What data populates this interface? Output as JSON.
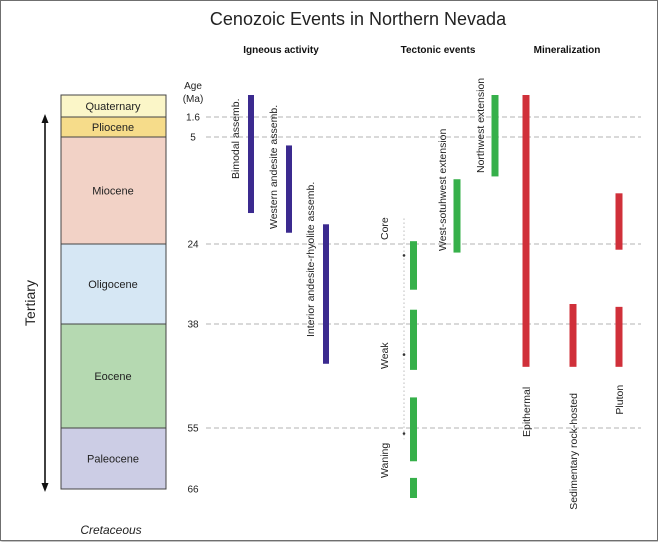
{
  "title": "Cenozoic  Events in Northern Nevada",
  "headers": {
    "igneous": "Igneous activity",
    "tectonic": "Tectonic events",
    "mineral": "Mineralization"
  },
  "axis": {
    "age_label_1": "Age",
    "age_label_2": "(Ma)"
  },
  "epochs": [
    {
      "name": "Quaternary",
      "start": 0,
      "end": 1.6,
      "color": "#fbf6c8"
    },
    {
      "name": "Pliocene",
      "start": 1.6,
      "end": 5,
      "color": "#f6dc8a"
    },
    {
      "name": "Miocene",
      "start": 5,
      "end": 24,
      "color": "#f2d2c6"
    },
    {
      "name": "Oligocene",
      "start": 24,
      "end": 38,
      "color": "#d6e7f4"
    },
    {
      "name": "Eocene",
      "start": 38,
      "end": 55,
      "color": "#b5d9b1"
    },
    {
      "name": "Paleocene",
      "start": 55,
      "end": 66,
      "color": "#cccde5"
    }
  ],
  "age_ticks": [
    "1.6",
    "5",
    "24",
    "38",
    "55",
    "66"
  ],
  "tertiary_label": "Tertiary",
  "cretaceous_label": "Cretaceous",
  "igneous": [
    {
      "label": "Bimodal assemb.",
      "start": 0,
      "end": 18.5,
      "color": "#3b2a8f"
    },
    {
      "label": "Western andesite assemb.",
      "start": 6.5,
      "end": 22,
      "color": "#3b2a8f"
    },
    {
      "label": "Interior andesite-rhyolite assemb.",
      "start": 20.5,
      "end": 44.5,
      "color": "#3b2a8f"
    }
  ],
  "tectonic_phases": [
    {
      "label": "Core",
      "start": 23,
      "end": 32
    },
    {
      "label": "Weak",
      "start": 34.5,
      "end": 45
    },
    {
      "label": "Waning",
      "start": 47.5,
      "end": 61
    }
  ],
  "tectonic_bars": [
    {
      "start": 23.5,
      "end": 32,
      "color": "#36b04a"
    },
    {
      "start": 35.5,
      "end": 45.5,
      "color": "#36b04a"
    },
    {
      "start": 50,
      "end": 61,
      "color": "#36b04a"
    },
    {
      "start": 64,
      "end": 70,
      "color": "#36b04a"
    }
  ],
  "extensions": [
    {
      "label": "West-sotuhwest extension",
      "start": 12.5,
      "end": 25.5,
      "color": "#36b04a"
    },
    {
      "label": "Northwest extension",
      "start": 0,
      "end": 12,
      "color": "#36b04a"
    }
  ],
  "mineralization": [
    {
      "label": "Epithermal",
      "start": 0,
      "end": 45,
      "color": "#d0303a"
    },
    {
      "label": "Sedimentary rock-hosted",
      "start": 34.5,
      "end": 45,
      "color": "#d0303a"
    },
    {
      "label": "Pluton",
      "start": 15,
      "end": 25,
      "color": "#d0303a",
      "start2": 35,
      "end2": 45
    }
  ]
}
